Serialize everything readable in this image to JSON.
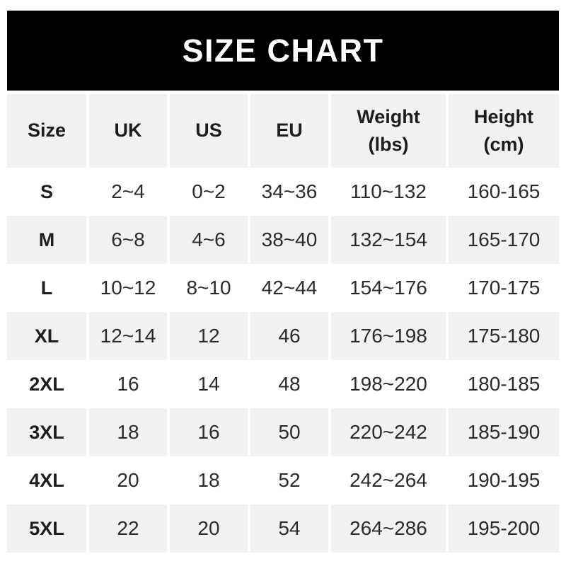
{
  "banner": {
    "title": "SIZE CHART"
  },
  "colors": {
    "banner_bg": "#000000",
    "banner_text": "#ffffff",
    "row_stripe_bg": "#f1f1f0",
    "row_plain_bg": "#ffffff",
    "text_dark": "#1d1d1d",
    "text_body": "#2b2b2b"
  },
  "chart_data": {
    "type": "table",
    "title": "SIZE CHART",
    "columns": [
      "Size",
      "UK",
      "US",
      "EU",
      "Weight\n(lbs)",
      "Height\n(cm)"
    ],
    "rows": [
      [
        "S",
        "2~4",
        "0~2",
        "34~36",
        "110~132",
        "160-165"
      ],
      [
        "M",
        "6~8",
        "4~6",
        "38~40",
        "132~154",
        "165-170"
      ],
      [
        "L",
        "10~12",
        "8~10",
        "42~44",
        "154~176",
        "170-175"
      ],
      [
        "XL",
        "12~14",
        "12",
        "46",
        "176~198",
        "175-180"
      ],
      [
        "2XL",
        "16",
        "14",
        "48",
        "198~220",
        "180-185"
      ],
      [
        "3XL",
        "18",
        "16",
        "50",
        "220~242",
        "185-190"
      ],
      [
        "4XL",
        "20",
        "18",
        "52",
        "242~264",
        "190-195"
      ],
      [
        "5XL",
        "22",
        "20",
        "54",
        "264~286",
        "195-200"
      ]
    ],
    "layout": {
      "striped_rows": "header, M, XL, 3XL, 5XL",
      "grid": "vertical white gaps between columns, no borders"
    }
  }
}
